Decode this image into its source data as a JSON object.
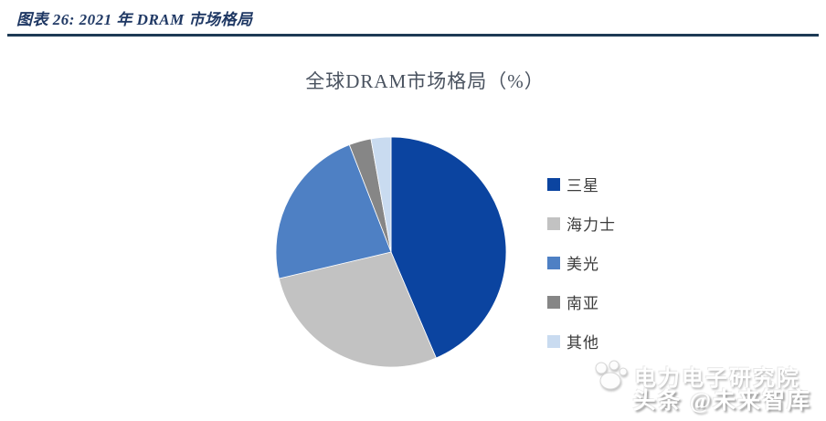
{
  "header": {
    "title": "图表 26:  2021 年 DRAM 市场格局"
  },
  "chart_data": {
    "type": "pie",
    "title": "全球DRAM市场格局（%）",
    "categories": [
      "三星",
      "海力士",
      "美光",
      "南亚",
      "其他"
    ],
    "values": [
      43.6,
      27.7,
      22.8,
      3.1,
      2.8
    ],
    "colors": [
      "#0B44A0",
      "#C2C2C2",
      "#4E80C4",
      "#868686",
      "#C9DBF0"
    ],
    "legend_position": "right",
    "start_angle_deg": 0,
    "direction": "clockwise",
    "slice_border_color": "#FFFFFF"
  },
  "watermark": {
    "line1": "电力电子研究院",
    "line2": "头条 @未来智库",
    "logo": "paw-icon"
  },
  "colors": {
    "header_text": "#1F3864",
    "divider": "#1D3A55",
    "chart_title_text": "#49525F",
    "legend_text": "#3C3C3C",
    "background": "#FFFFFF"
  }
}
